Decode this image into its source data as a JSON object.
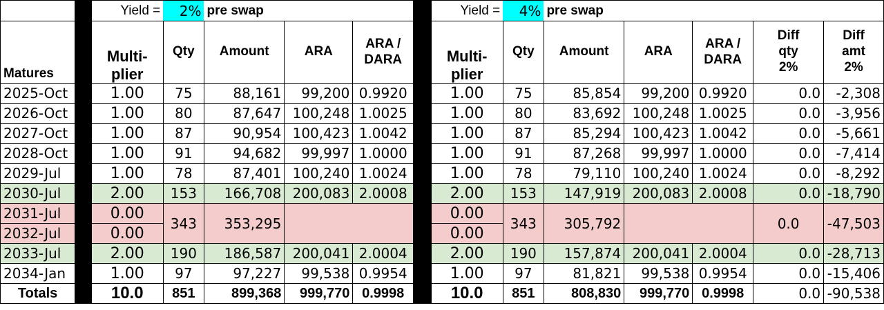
{
  "left": {
    "yield_label": "Yield =",
    "yield_value": "2%",
    "pre_swap": "pre swap",
    "headers": {
      "multiplier": "Multi-\nplier",
      "qty": "Qty",
      "amount": "Amount",
      "ara": "ARA",
      "ara_dara": "ARA /\nDARA"
    }
  },
  "right": {
    "yield_label": "Yield =",
    "yield_value": "4%",
    "pre_swap": "pre swap",
    "headers": {
      "multiplier": "Multi-\nplier",
      "qty": "Qty",
      "amount": "Amount",
      "ara": "ARA",
      "ara_dara": "ARA /\nDARA",
      "diff_qty": "Diff\nqty\n2%",
      "diff_amt": "Diff\namt\n2%"
    }
  },
  "matures_header": "Matures",
  "rows": [
    {
      "matures": "2025-Oct",
      "l": {
        "mult": "1.00",
        "qty": "75",
        "amount": "88,161",
        "ara": "99,200",
        "ratio": "0.9920"
      },
      "r": {
        "mult": "1.00",
        "qty": "75",
        "amount": "85,854",
        "ara": "99,200",
        "ratio": "0.9920",
        "dq": "0.0",
        "da": "-2,308"
      }
    },
    {
      "matures": "2026-Oct",
      "l": {
        "mult": "1.00",
        "qty": "80",
        "amount": "87,647",
        "ara": "100,248",
        "ratio": "1.0025"
      },
      "r": {
        "mult": "1.00",
        "qty": "80",
        "amount": "83,692",
        "ara": "100,248",
        "ratio": "1.0025",
        "dq": "0.0",
        "da": "-3,956"
      }
    },
    {
      "matures": "2027-Oct",
      "l": {
        "mult": "1.00",
        "qty": "87",
        "amount": "90,954",
        "ara": "100,423",
        "ratio": "1.0042"
      },
      "r": {
        "mult": "1.00",
        "qty": "87",
        "amount": "85,294",
        "ara": "100,423",
        "ratio": "1.0042",
        "dq": "0.0",
        "da": "-5,661"
      }
    },
    {
      "matures": "2028-Oct",
      "l": {
        "mult": "1.00",
        "qty": "91",
        "amount": "94,682",
        "ara": "99,997",
        "ratio": "1.0000"
      },
      "r": {
        "mult": "1.00",
        "qty": "91",
        "amount": "87,268",
        "ara": "99,997",
        "ratio": "1.0000",
        "dq": "0.0",
        "da": "-7,414"
      }
    },
    {
      "matures": "2029-Jul",
      "l": {
        "mult": "1.00",
        "qty": "78",
        "amount": "87,401",
        "ara": "100,240",
        "ratio": "1.0024"
      },
      "r": {
        "mult": "1.00",
        "qty": "78",
        "amount": "79,110",
        "ara": "100,240",
        "ratio": "1.0024",
        "dq": "0.0",
        "da": "-8,292"
      }
    },
    {
      "matures": "2030-Jul",
      "l": {
        "mult": "2.00",
        "qty": "153",
        "amount": "166,708",
        "ara": "200,083",
        "ratio": "2.0008"
      },
      "r": {
        "mult": "2.00",
        "qty": "153",
        "amount": "147,919",
        "ara": "200,083",
        "ratio": "2.0008",
        "dq": "0.0",
        "da": "-18,790"
      }
    }
  ],
  "merged": {
    "matures_a": "2031-Jul",
    "matures_b": "2032-Jul",
    "l": {
      "mult_a": "0.00",
      "mult_b": "0.00",
      "qty": "343",
      "amount": "353,295"
    },
    "r": {
      "mult_a": "0.00",
      "mult_b": "0.00",
      "qty": "343",
      "amount": "305,792",
      "dq": "0.0",
      "da": "-47,503"
    }
  },
  "rows2": [
    {
      "matures": "2033-Jul",
      "l": {
        "mult": "2.00",
        "qty": "190",
        "amount": "186,587",
        "ara": "200,041",
        "ratio": "2.0004"
      },
      "r": {
        "mult": "2.00",
        "qty": "190",
        "amount": "157,874",
        "ara": "200,041",
        "ratio": "2.0004",
        "dq": "0.0",
        "da": "-28,713"
      }
    },
    {
      "matures": "2034-Jan",
      "l": {
        "mult": "1.00",
        "qty": "97",
        "amount": "97,227",
        "ara": "99,538",
        "ratio": "0.9954"
      },
      "r": {
        "mult": "1.00",
        "qty": "97",
        "amount": "81,821",
        "ara": "99,538",
        "ratio": "0.9954",
        "dq": "0.0",
        "da": "-15,406"
      }
    }
  ],
  "totals": {
    "label": "Totals",
    "l": {
      "mult": "10.0",
      "qty": "851",
      "amount": "899,368",
      "ara": "999,770",
      "ratio": "0.9998"
    },
    "r": {
      "mult": "10.0",
      "qty": "851",
      "amount": "808,830",
      "ara": "999,770",
      "ratio": "0.9998",
      "dq": "0.0",
      "da": "-90,538"
    }
  },
  "colors": {
    "green_row": "#d9ead3",
    "pink_row": "#f4cccc",
    "yield_cell": "#00ffff",
    "divider": "#000000"
  }
}
